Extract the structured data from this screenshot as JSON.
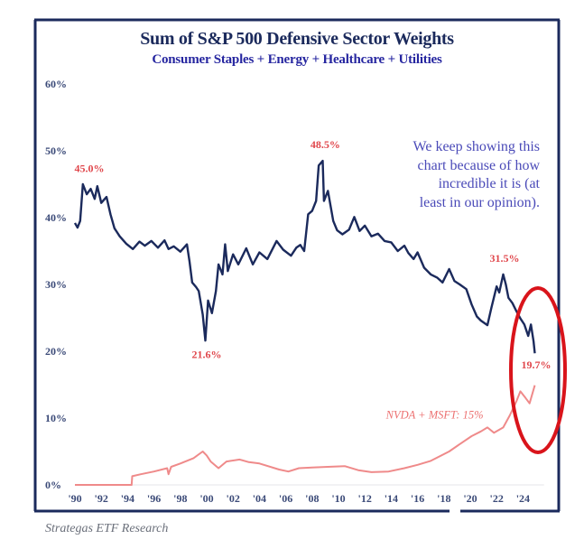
{
  "chart_data": {
    "type": "line",
    "title": "Sum of S&P 500 Defensive Sector Weights",
    "subtitle": "Consumer Staples + Energy + Healthcare + Utilities",
    "xlim": [
      1990,
      2025.6
    ],
    "ylim": [
      0,
      60
    ],
    "x_tick_labels": [
      "'90",
      "'92",
      "'94",
      "'96",
      "'98",
      "'00",
      "'02",
      "'04",
      "'06",
      "'08",
      "'10",
      "'12",
      "'14",
      "'16",
      "'18",
      "'20",
      "'22",
      "'24"
    ],
    "x_tick_values": [
      1990,
      1992,
      1994,
      1996,
      1998,
      2000,
      2002,
      2004,
      2006,
      2008,
      2010,
      2012,
      2014,
      2016,
      2018,
      2020,
      2022,
      2024
    ],
    "y_tick_labels": [
      "0%",
      "10%",
      "20%",
      "30%",
      "40%",
      "50%",
      "60%"
    ],
    "y_tick_values": [
      0,
      10,
      20,
      30,
      40,
      50,
      60
    ],
    "grid": false,
    "series": [
      {
        "color": "#1b2a5c",
        "points": [
          [
            1990.0,
            39.2
          ],
          [
            1990.2,
            38.5
          ],
          [
            1990.4,
            39.5
          ],
          [
            1990.6,
            45.0
          ],
          [
            1990.9,
            43.5
          ],
          [
            1991.2,
            44.3
          ],
          [
            1991.5,
            42.8
          ],
          [
            1991.7,
            44.7
          ],
          [
            1992.0,
            42.2
          ],
          [
            1992.4,
            43.1
          ],
          [
            1992.7,
            40.5
          ],
          [
            1993.0,
            38.4
          ],
          [
            1993.4,
            37.2
          ],
          [
            1993.9,
            36.1
          ],
          [
            1994.4,
            35.3
          ],
          [
            1994.9,
            36.4
          ],
          [
            1995.3,
            35.8
          ],
          [
            1995.8,
            36.5
          ],
          [
            1996.3,
            35.5
          ],
          [
            1996.8,
            36.6
          ],
          [
            1997.1,
            35.3
          ],
          [
            1997.5,
            35.7
          ],
          [
            1998.0,
            34.9
          ],
          [
            1998.5,
            36.0
          ],
          [
            1998.7,
            33.4
          ],
          [
            1998.9,
            30.3
          ],
          [
            1999.2,
            29.6
          ],
          [
            1999.4,
            29.0
          ],
          [
            1999.7,
            25.5
          ],
          [
            1999.9,
            21.6
          ],
          [
            2000.1,
            27.6
          ],
          [
            2000.4,
            25.7
          ],
          [
            2000.7,
            29.0
          ],
          [
            2000.9,
            33.0
          ],
          [
            2001.2,
            31.5
          ],
          [
            2001.4,
            36.0
          ],
          [
            2001.6,
            32.0
          ],
          [
            2002.0,
            34.5
          ],
          [
            2002.4,
            33.0
          ],
          [
            2003.0,
            35.4
          ],
          [
            2003.5,
            33.0
          ],
          [
            2004.0,
            34.8
          ],
          [
            2004.6,
            33.8
          ],
          [
            2005.3,
            36.5
          ],
          [
            2005.8,
            35.2
          ],
          [
            2006.4,
            34.3
          ],
          [
            2006.8,
            35.5
          ],
          [
            2007.1,
            35.9
          ],
          [
            2007.4,
            35.0
          ],
          [
            2007.7,
            40.5
          ],
          [
            2008.0,
            41.0
          ],
          [
            2008.3,
            42.5
          ],
          [
            2008.5,
            47.8
          ],
          [
            2008.8,
            48.5
          ],
          [
            2008.9,
            42.5
          ],
          [
            2009.2,
            44.0
          ],
          [
            2009.6,
            39.5
          ],
          [
            2009.9,
            38.1
          ],
          [
            2010.3,
            37.5
          ],
          [
            2010.8,
            38.2
          ],
          [
            2011.2,
            40.1
          ],
          [
            2011.6,
            38.0
          ],
          [
            2012.0,
            38.8
          ],
          [
            2012.5,
            37.2
          ],
          [
            2013.0,
            37.6
          ],
          [
            2013.5,
            36.5
          ],
          [
            2014.0,
            36.3
          ],
          [
            2014.5,
            35.0
          ],
          [
            2015.0,
            35.8
          ],
          [
            2015.3,
            34.7
          ],
          [
            2015.7,
            33.8
          ],
          [
            2016.0,
            34.8
          ],
          [
            2016.5,
            32.5
          ],
          [
            2017.0,
            31.5
          ],
          [
            2017.5,
            31.0
          ],
          [
            2017.9,
            30.3
          ],
          [
            2018.4,
            32.3
          ],
          [
            2018.8,
            30.5
          ],
          [
            2019.2,
            30.0
          ],
          [
            2019.7,
            29.3
          ],
          [
            2020.1,
            27.0
          ],
          [
            2020.5,
            25.2
          ],
          [
            2020.8,
            24.6
          ],
          [
            2021.3,
            23.9
          ],
          [
            2021.6,
            26.5
          ],
          [
            2022.0,
            29.7
          ],
          [
            2022.2,
            28.8
          ],
          [
            2022.5,
            31.5
          ],
          [
            2022.7,
            30.0
          ],
          [
            2022.9,
            28.0
          ],
          [
            2023.2,
            27.2
          ],
          [
            2023.5,
            26.0
          ],
          [
            2023.8,
            24.9
          ],
          [
            2024.1,
            24.0
          ],
          [
            2024.4,
            22.3
          ],
          [
            2024.6,
            24.0
          ],
          [
            2024.8,
            21.5
          ],
          [
            2024.9,
            19.7
          ]
        ]
      },
      {
        "color": "#ef8a8a",
        "points": [
          [
            1990.0,
            0
          ],
          [
            1994.3,
            0
          ],
          [
            1994.35,
            1.3
          ],
          [
            1995.0,
            1.6
          ],
          [
            1996.0,
            2.0
          ],
          [
            1997.0,
            2.5
          ],
          [
            1997.1,
            1.6
          ],
          [
            1997.3,
            2.7
          ],
          [
            1998.0,
            3.2
          ],
          [
            1999.0,
            4.0
          ],
          [
            1999.7,
            5.0
          ],
          [
            2000.0,
            4.4
          ],
          [
            2000.3,
            3.5
          ],
          [
            2000.9,
            2.5
          ],
          [
            2001.5,
            3.5
          ],
          [
            2002.5,
            3.8
          ],
          [
            2003.2,
            3.4
          ],
          [
            2004.0,
            3.2
          ],
          [
            2005.5,
            2.3
          ],
          [
            2006.2,
            2.0
          ],
          [
            2007.0,
            2.5
          ],
          [
            2008.0,
            2.6
          ],
          [
            2009.2,
            2.7
          ],
          [
            2010.5,
            2.8
          ],
          [
            2011.5,
            2.2
          ],
          [
            2012.5,
            1.9
          ],
          [
            2013.8,
            2.0
          ],
          [
            2015.0,
            2.5
          ],
          [
            2016.0,
            3.0
          ],
          [
            2017.0,
            3.6
          ],
          [
            2018.4,
            5.0
          ],
          [
            2019.5,
            6.5
          ],
          [
            2020.1,
            7.3
          ],
          [
            2020.8,
            8.0
          ],
          [
            2021.3,
            8.6
          ],
          [
            2021.8,
            7.8
          ],
          [
            2022.5,
            8.6
          ],
          [
            2023.0,
            10.4
          ],
          [
            2023.5,
            12.5
          ],
          [
            2023.8,
            14.0
          ],
          [
            2024.2,
            13.0
          ],
          [
            2024.5,
            12.2
          ],
          [
            2024.9,
            14.9
          ]
        ]
      }
    ],
    "annotations": [
      {
        "text": "45.0%",
        "x": 1991.1,
        "y": 46.8,
        "color": "#e0474c"
      },
      {
        "text": "21.6%",
        "x": 2000.0,
        "y": 19.0,
        "color": "#e0474c"
      },
      {
        "text": "48.5%",
        "x": 2009.0,
        "y": 50.4,
        "color": "#e0474c"
      },
      {
        "text": "31.5%",
        "x": 2022.6,
        "y": 33.4,
        "color": "#e0474c"
      },
      {
        "text": "19.7%",
        "x": 2025.0,
        "y": 17.4,
        "color": "#e0474c"
      }
    ],
    "series_label": {
      "text": "NVDA + MSFT: 15%",
      "x": 2017.3,
      "y": 9.9,
      "color": "#ec7070"
    },
    "note": [
      "We keep showing this",
      "chart because of how",
      "incredible it is (at",
      "least in our opinion)."
    ],
    "highlight_color": "#d9141b"
  },
  "source": "Strategas ETF Research"
}
